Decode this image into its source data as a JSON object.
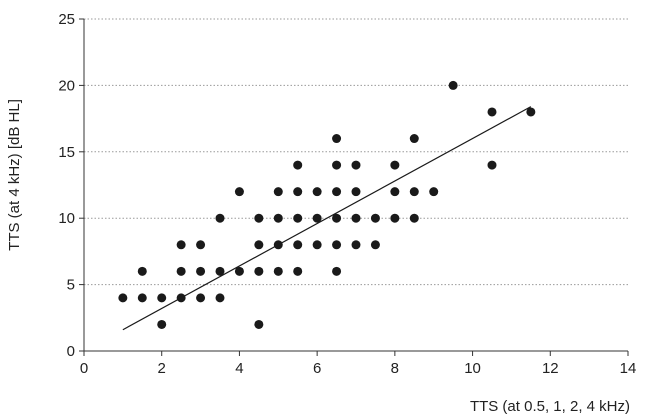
{
  "chart_data": {
    "type": "scatter",
    "title": "",
    "xlabel": "TTS (at 0.5, 1, 2, 4 kHz)",
    "ylabel": "TTS (at 4 kHz) [dB HL]",
    "xlim": [
      0,
      14
    ],
    "ylim": [
      0,
      25
    ],
    "xticks": [
      0,
      2,
      4,
      6,
      8,
      10,
      12,
      14
    ],
    "yticks": [
      0,
      5,
      10,
      15,
      20,
      25
    ],
    "grid": "horizontal dotted",
    "colors": {
      "points": "#1a1a1a",
      "trendline": "#1a1a1a",
      "grid": "#9a9a9a",
      "axis": "#333333"
    },
    "points": [
      [
        1,
        4
      ],
      [
        1.5,
        4
      ],
      [
        1.5,
        6
      ],
      [
        2,
        2
      ],
      [
        2,
        4
      ],
      [
        2.5,
        4
      ],
      [
        2.5,
        6
      ],
      [
        2.5,
        8
      ],
      [
        3,
        4
      ],
      [
        3,
        6
      ],
      [
        3,
        8
      ],
      [
        3.5,
        4
      ],
      [
        3.5,
        6
      ],
      [
        3.5,
        10
      ],
      [
        4,
        6
      ],
      [
        4,
        12
      ],
      [
        4.5,
        2
      ],
      [
        4.5,
        6
      ],
      [
        4.5,
        8
      ],
      [
        4.5,
        10
      ],
      [
        5,
        6
      ],
      [
        5,
        8
      ],
      [
        5,
        10
      ],
      [
        5,
        12
      ],
      [
        5.5,
        6
      ],
      [
        5.5,
        8
      ],
      [
        5.5,
        10
      ],
      [
        5.5,
        12
      ],
      [
        5.5,
        14
      ],
      [
        6,
        8
      ],
      [
        6,
        10
      ],
      [
        6,
        12
      ],
      [
        6.5,
        6
      ],
      [
        6.5,
        8
      ],
      [
        6.5,
        10
      ],
      [
        6.5,
        12
      ],
      [
        6.5,
        14
      ],
      [
        6.5,
        16
      ],
      [
        7,
        8
      ],
      [
        7,
        10
      ],
      [
        7,
        12
      ],
      [
        7,
        14
      ],
      [
        7.5,
        8
      ],
      [
        7.5,
        10
      ],
      [
        8,
        10
      ],
      [
        8,
        12
      ],
      [
        8,
        14
      ],
      [
        8.5,
        10
      ],
      [
        8.5,
        12
      ],
      [
        8.5,
        16
      ],
      [
        9,
        12
      ],
      [
        9.5,
        20
      ],
      [
        10.5,
        14
      ],
      [
        10.5,
        18
      ],
      [
        11.5,
        18
      ]
    ],
    "trendline": {
      "x": [
        1,
        11.5
      ],
      "y": [
        1.6,
        18.4
      ]
    }
  }
}
